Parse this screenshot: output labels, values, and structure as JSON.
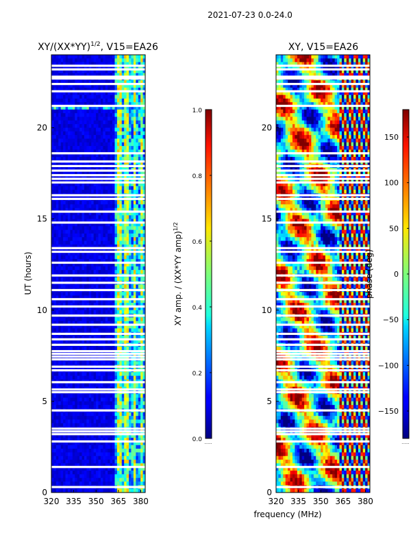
{
  "figure": {
    "suptitle": "2021-07-23 0.0-24.0",
    "shared_xlabel": "frequency (MHz)"
  },
  "chart_data": [
    {
      "type": "heatmap",
      "title_main": "XY/(XX*YY)",
      "title_exp": "1/2",
      "title_suffix": ", V15=EA26",
      "xlabel": "",
      "ylabel": "UT (hours)",
      "xlim": [
        320,
        383
      ],
      "ylim": [
        0,
        24
      ],
      "xticks": [
        320,
        335,
        350,
        365,
        380
      ],
      "yticks": [
        0,
        5,
        10,
        15,
        20
      ],
      "colorscale": "jet",
      "colorbar": {
        "label_main": "XY amp. / (XX*YY amp)",
        "label_exp": "1/2",
        "range": [
          0.0,
          1.0
        ],
        "ticks": [
          "0.0",
          "0.2",
          "0.4",
          "0.6",
          "0.8",
          "1.0"
        ]
      },
      "flagged_hours": [
        0.3,
        1.4,
        2.8,
        3.2,
        3.35,
        3.5,
        4.5,
        5.5,
        5.65,
        6.05,
        6.7,
        6.9,
        7.3,
        7.45,
        7.6,
        7.75,
        8.1,
        8.4,
        8.7,
        9.2,
        9.7,
        10.2,
        10.6,
        11.1,
        11.5,
        11.9,
        12.6,
        13.2,
        13.4,
        14.8,
        15.4,
        16.1,
        16.3,
        17.0,
        17.2,
        17.4,
        17.65,
        17.9,
        18.15,
        18.6,
        21.2,
        22.0,
        22.4,
        22.7,
        22.8,
        23.2,
        23.4
      ]
    },
    {
      "type": "heatmap",
      "title_main": "XY, V15=EA26",
      "xlabel": "",
      "ylabel": "",
      "xlim": [
        320,
        383
      ],
      "ylim": [
        0,
        24
      ],
      "xticks": [
        320,
        335,
        350,
        365,
        380
      ],
      "yticks": [
        0,
        5,
        10,
        15,
        20
      ],
      "colorscale": "jet",
      "colorbar": {
        "label_main": "phase (deg)",
        "range": [
          -180,
          180
        ],
        "ticks": [
          "150",
          "100",
          "50",
          "0",
          "−50",
          "−100",
          "−150"
        ],
        "tick_values": [
          150,
          100,
          50,
          0,
          -50,
          -100,
          -150
        ]
      },
      "flagged_hours": [
        0.3,
        1.4,
        2.8,
        3.2,
        3.35,
        3.5,
        4.5,
        5.5,
        5.65,
        6.05,
        6.7,
        6.9,
        7.3,
        7.45,
        7.6,
        7.75,
        8.1,
        8.4,
        8.7,
        9.2,
        9.7,
        10.2,
        10.6,
        11.1,
        11.5,
        11.9,
        12.6,
        13.2,
        13.4,
        14.8,
        15.4,
        16.1,
        16.3,
        17.0,
        17.2,
        17.4,
        17.65,
        17.9,
        18.15,
        18.6,
        21.2,
        22.0,
        22.4,
        22.7,
        22.8,
        23.2,
        23.4
      ]
    }
  ]
}
